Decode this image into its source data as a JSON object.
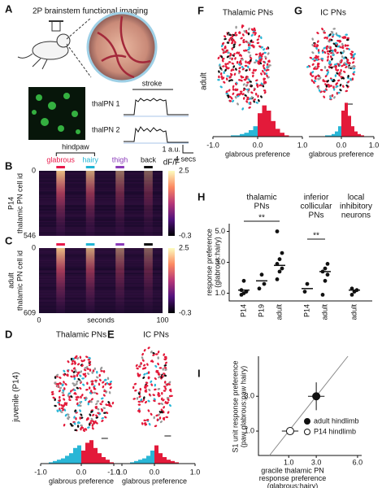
{
  "panel_labels": [
    "A",
    "B",
    "C",
    "D",
    "E",
    "F",
    "G",
    "H",
    "I"
  ],
  "panel_a": {
    "title": "2P brainstem functional imaging",
    "stimulus_label": "stroke",
    "traces": [
      "thalPN 1",
      "thalPN 2"
    ],
    "scale_y": "1 a.u.",
    "scale_x": "4 secs"
  },
  "stimuli": {
    "group": "hindpaw",
    "items": [
      {
        "name": "glabrous",
        "color": "#e8194a",
        "start": 14,
        "end": 21
      },
      {
        "name": "hairy",
        "color": "#22b5d4",
        "start": 38,
        "end": 45
      },
      {
        "name": "thigh",
        "color": "#8a3ab9",
        "start": 62,
        "end": 69
      },
      {
        "name": "back",
        "color": "#111111",
        "start": 85,
        "end": 92
      }
    ]
  },
  "chart_data": [
    {
      "type": "heatmap",
      "ylabel_group": "P14",
      "ylabel": "thalamic PN cell id",
      "ylim": [
        0,
        546
      ],
      "yticks": [
        0,
        546
      ],
      "xlim": [
        0,
        100
      ],
      "colorbar_label": "dF/F",
      "clim": [
        -0.3,
        2.5
      ],
      "cticks": [
        2.5,
        -0.3
      ]
    },
    {
      "type": "heatmap",
      "ylabel_group": "adult",
      "ylabel": "thalamic PN cell id",
      "ylim": [
        0,
        609
      ],
      "yticks": [
        0,
        609
      ],
      "xlim": [
        0,
        100
      ],
      "xticks": [
        0,
        100
      ],
      "xlabel": "seconds",
      "clim": [
        -0.3,
        2.5
      ],
      "cticks": [
        2.5,
        -0.3
      ]
    },
    {
      "type": "histogram",
      "title": "Thalamic PNs",
      "group_label": "juvenile (P14)",
      "bins": [
        -1,
        -0.9,
        -0.8,
        -0.7,
        -0.6,
        -0.5,
        -0.4,
        -0.3,
        -0.2,
        -0.1,
        0,
        0.1,
        0.2,
        0.3,
        0.4,
        0.5,
        0.6,
        0.7,
        0.8,
        0.9,
        1
      ],
      "values": [
        0,
        0,
        1,
        2,
        3,
        4,
        6,
        8,
        12,
        14,
        10,
        16,
        18,
        12,
        8,
        5,
        3,
        1,
        0,
        0
      ],
      "xlim": [
        -1,
        1
      ],
      "xticks": [
        {
          "value": -1,
          "label": "-1.0"
        },
        {
          "value": 0,
          "label": "0.0"
        },
        {
          "value": 1,
          "label": "1.0"
        }
      ],
      "xlabel": "glabrous preference",
      "color_negative": "#29b6d6",
      "color_positive": "#e31a3a"
    },
    {
      "type": "histogram",
      "title": "IC PNs",
      "bins": [
        -1,
        -0.9,
        -0.8,
        -0.7,
        -0.6,
        -0.5,
        -0.4,
        -0.3,
        -0.2,
        -0.1,
        0,
        0.1,
        0.2,
        0.3,
        0.4,
        0.5,
        0.6,
        0.7,
        0.8,
        0.9,
        1
      ],
      "values": [
        0,
        0,
        0,
        0,
        1,
        2,
        3,
        4,
        6,
        10,
        14,
        8,
        5,
        3,
        2,
        1,
        0,
        0,
        0,
        0
      ],
      "xlim": [
        -1,
        1
      ],
      "xticks": [
        {
          "value": -1,
          "label": "-1.0"
        },
        {
          "value": 0,
          "label": "0.0"
        },
        {
          "value": 1,
          "label": "1.0"
        }
      ],
      "xlabel": "glabrous preference",
      "color_negative": "#29b6d6",
      "color_positive": "#e31a3a"
    },
    {
      "type": "histogram",
      "title": "Thalamic PNs",
      "group_label": "adult",
      "bins": [
        -1,
        -0.9,
        -0.8,
        -0.7,
        -0.6,
        -0.5,
        -0.4,
        -0.3,
        -0.2,
        -0.1,
        0,
        0.1,
        0.2,
        0.3,
        0.4,
        0.5,
        0.6,
        0.7,
        0.8,
        0.9,
        1
      ],
      "values": [
        0,
        0,
        0,
        0,
        1,
        1,
        2,
        3,
        5,
        8,
        18,
        24,
        20,
        12,
        6,
        3,
        1,
        0,
        0,
        0
      ],
      "xlim": [
        -1,
        1
      ],
      "xticks": [
        {
          "value": -1,
          "label": "-1.0"
        },
        {
          "value": 0,
          "label": "0.0"
        },
        {
          "value": 1,
          "label": "1.0"
        }
      ],
      "xlabel": "glabrous preference",
      "color_negative": "#29b6d6",
      "color_positive": "#e31a3a"
    },
    {
      "type": "histogram",
      "title": "IC PNs",
      "bins": [
        -1,
        -0.9,
        -0.8,
        -0.7,
        -0.6,
        -0.5,
        -0.4,
        -0.3,
        -0.2,
        -0.1,
        0,
        0.1,
        0.2,
        0.3,
        0.4,
        0.5,
        0.6,
        0.7,
        0.8,
        0.9,
        1
      ],
      "values": [
        0,
        0,
        0,
        0,
        0,
        1,
        1,
        2,
        4,
        8,
        20,
        26,
        16,
        8,
        4,
        2,
        1,
        0,
        0,
        0
      ],
      "xlim": [
        -1,
        1
      ],
      "xticks": [
        {
          "value": 0,
          "label": "0.0"
        },
        {
          "value": 1,
          "label": "1.0"
        }
      ],
      "xlabel": "glabrous preference",
      "color_negative": "#29b6d6",
      "color_positive": "#e31a3a"
    },
    {
      "type": "strip",
      "group_titles": [
        [
          "thalamic",
          "PNs"
        ],
        [
          "inferior",
          "collicular",
          "PNs"
        ],
        [
          "local",
          "inhibitory",
          "neurons"
        ]
      ],
      "ylabel": [
        "response preference",
        "(glabrous:hairy)"
      ],
      "categories": [
        "P14",
        "P19",
        "adult",
        "P14",
        "adult",
        "adult"
      ],
      "points": [
        [
          0.9,
          1.0,
          1.1,
          1.2,
          1.8
        ],
        [
          1.3,
          2.2,
          1.6
        ],
        [
          1.9,
          2.4,
          2.6,
          2.9,
          3.2,
          3.6,
          5.0
        ],
        [
          1.1,
          1.6
        ],
        [
          0.9,
          1.8,
          2.2,
          2.4,
          2.6,
          2.9
        ],
        [
          0.9,
          1.1,
          1.2,
          1.3
        ]
      ],
      "means": [
        1.2,
        1.8,
        2.8,
        1.3,
        2.4,
        1.2
      ],
      "annotations": [
        "**",
        "**"
      ],
      "ylim": [
        0.5,
        5.5
      ],
      "yticks": [
        {
          "value": 1,
          "label": "1.0"
        },
        {
          "value": 3,
          "label": "3.0"
        },
        {
          "value": 5,
          "label": "5.0"
        }
      ]
    },
    {
      "type": "scatter",
      "xlabel": [
        "gracile thalamic PN",
        "response preference",
        "(glabrous:hairy)"
      ],
      "ylabel": [
        "S1 unit response preference",
        "(paw glabrous:paw hairy)"
      ],
      "xlim": [
        -1.2,
        6.3
      ],
      "ylim": [
        -0.4,
        5.3
      ],
      "xticks": [
        {
          "value": 1,
          "label": "1.0"
        },
        {
          "value": 3,
          "label": "3.0"
        },
        {
          "value": 6,
          "label": "6.0"
        }
      ],
      "yticks": [
        {
          "value": 1,
          "label": "1.0"
        },
        {
          "value": 3,
          "label": "3.0"
        }
      ],
      "series": [
        {
          "name": "adult hindlimb",
          "x": [
            3.0
          ],
          "values": [
            3.0
          ],
          "xerr": [
            0.6
          ],
          "yerr": [
            0.8
          ],
          "filled": true,
          "color": "#111111"
        },
        {
          "name": "P14 hindlimb",
          "x": [
            1.1
          ],
          "values": [
            1.0
          ],
          "xerr": [
            0.6
          ],
          "yerr": [
            0.2
          ],
          "filled": false,
          "color": "#111111"
        }
      ]
    }
  ]
}
